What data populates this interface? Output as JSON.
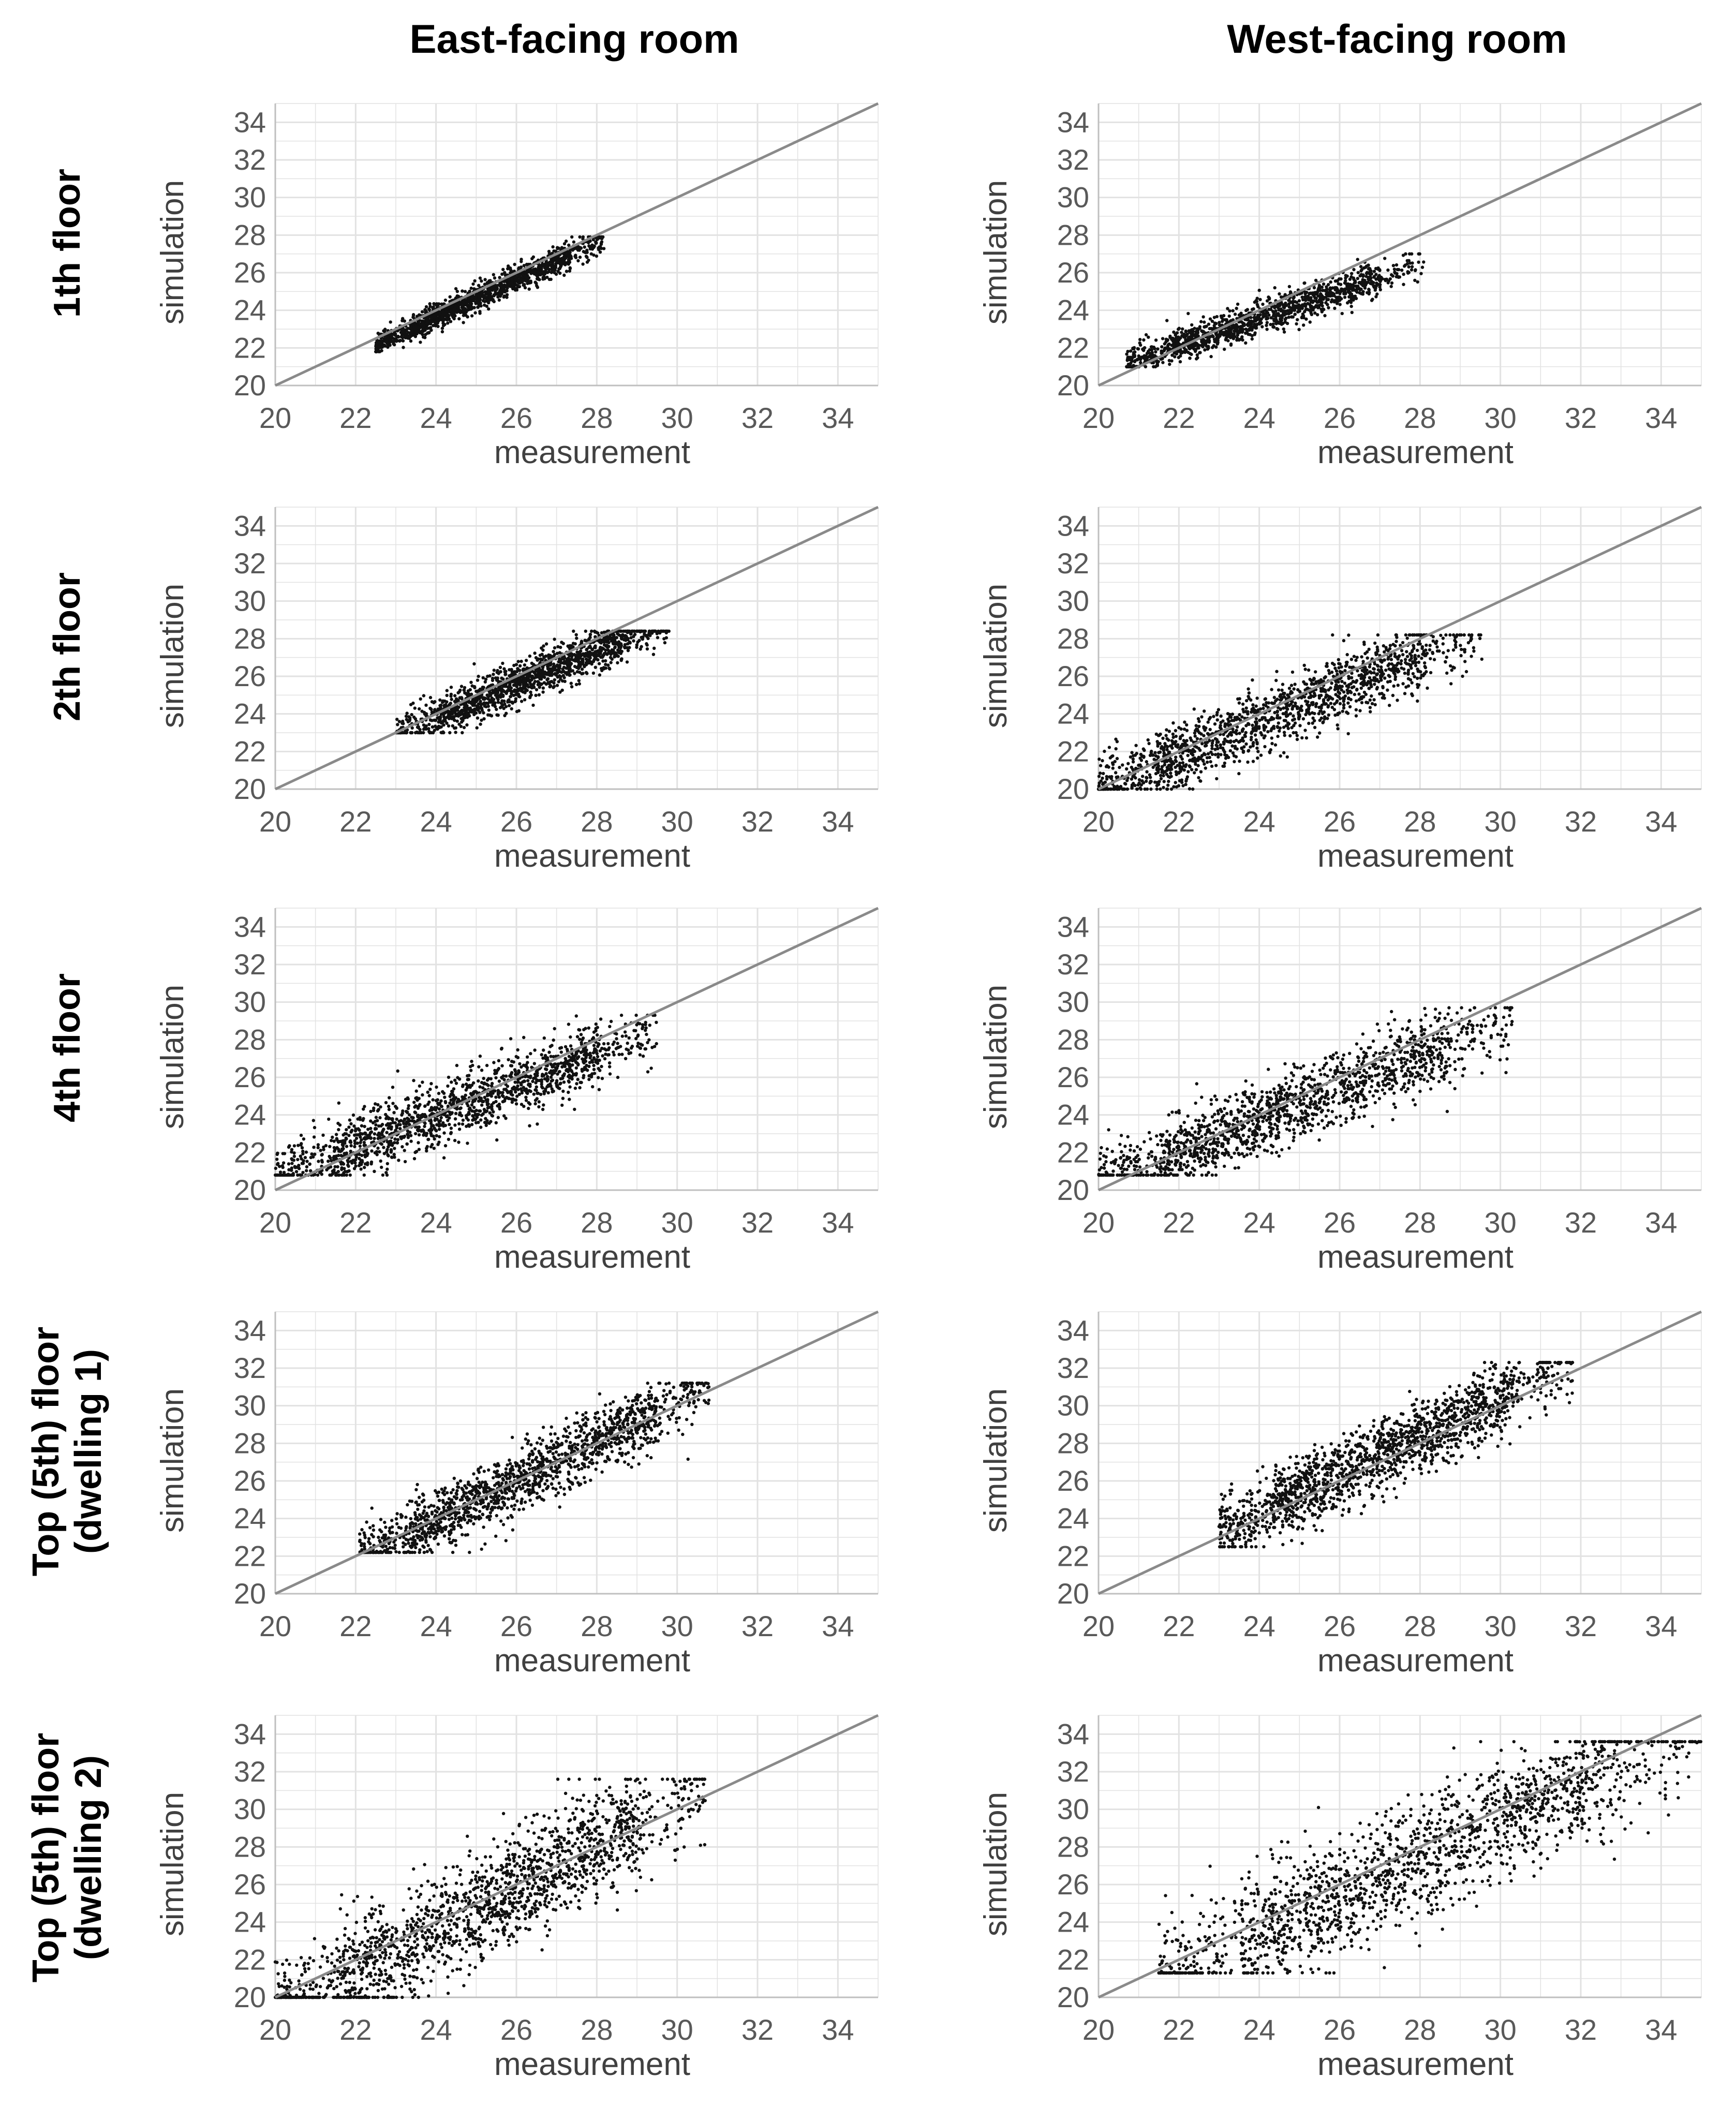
{
  "columns": [
    "East-facing room",
    "West-facing room"
  ],
  "rows": [
    {
      "label": [
        "1th floor"
      ]
    },
    {
      "label": [
        "2th floor"
      ]
    },
    {
      "label": [
        "4th floor"
      ]
    },
    {
      "label": [
        "Top (5th) floor",
        "(dwelling 1)"
      ]
    },
    {
      "label": [
        "Top (5th) floor",
        "(dwelling 2)"
      ]
    }
  ],
  "colors": {
    "points": "#111111",
    "reference_line": "#8a8a8a",
    "grid": "#e2e2e2",
    "tick_text": "#595959"
  },
  "chart_data": [
    {
      "type": "scatter",
      "row": 0,
      "col": 0,
      "title": "1th floor - East-facing room",
      "xlabel": "measurement",
      "ylabel": "simulation",
      "xlim": [
        20,
        35
      ],
      "ylim": [
        20,
        35
      ],
      "xticks": [
        20,
        22,
        24,
        26,
        28,
        30,
        32,
        34
      ],
      "yticks": [
        20,
        22,
        24,
        26,
        28,
        30,
        32,
        34
      ],
      "reference_line": "y = x",
      "cloud": {
        "n": 1400,
        "x_range": [
          22.5,
          28.2
        ],
        "slope": 1.0,
        "offset": -0.35,
        "spread": 0.35,
        "y_clip": [
          21.8,
          27.9
        ],
        "skew": 0.4
      }
    },
    {
      "type": "scatter",
      "row": 0,
      "col": 1,
      "title": "1th floor - West-facing room",
      "xlabel": "measurement",
      "ylabel": "simulation",
      "xlim": [
        20,
        35
      ],
      "ylim": [
        20,
        35
      ],
      "xticks": [
        20,
        22,
        24,
        26,
        28,
        30,
        32,
        34
      ],
      "yticks": [
        20,
        22,
        24,
        26,
        28,
        30,
        32,
        34
      ],
      "reference_line": "y = x",
      "cloud": {
        "n": 1300,
        "x_range": [
          20.7,
          28.1
        ],
        "slope": 0.72,
        "offset": 6.3,
        "spread": 0.45,
        "y_clip": [
          21.0,
          27.0
        ],
        "skew": 0.5
      }
    },
    {
      "type": "scatter",
      "row": 1,
      "col": 0,
      "title": "2th floor - East-facing room",
      "xlabel": "measurement",
      "ylabel": "simulation",
      "xlim": [
        20,
        35
      ],
      "ylim": [
        20,
        35
      ],
      "xticks": [
        20,
        22,
        24,
        26,
        28,
        30,
        32,
        34
      ],
      "yticks": [
        20,
        22,
        24,
        26,
        28,
        30,
        32,
        34
      ],
      "reference_line": "y = x",
      "cloud": {
        "n": 1500,
        "x_range": [
          23.0,
          29.8
        ],
        "slope": 0.9,
        "offset": 2.2,
        "spread": 0.55,
        "y_clip": [
          23.0,
          28.4
        ],
        "skew": 0.2
      }
    },
    {
      "type": "scatter",
      "row": 1,
      "col": 1,
      "title": "2th floor - West-facing room",
      "xlabel": "measurement",
      "ylabel": "simulation",
      "xlim": [
        20,
        35
      ],
      "ylim": [
        20,
        35
      ],
      "xticks": [
        20,
        22,
        24,
        26,
        28,
        30,
        32,
        34
      ],
      "yticks": [
        20,
        22,
        24,
        26,
        28,
        30,
        32,
        34
      ],
      "reference_line": "y = x",
      "cloud": {
        "n": 1500,
        "x_range": [
          20.0,
          29.6
        ],
        "slope": 0.88,
        "offset": 2.4,
        "spread": 0.9,
        "y_clip": [
          20.0,
          28.2
        ],
        "skew": 0.4
      }
    },
    {
      "type": "scatter",
      "row": 2,
      "col": 0,
      "title": "4th floor - East-facing room",
      "xlabel": "measurement",
      "ylabel": "simulation",
      "xlim": [
        20,
        35
      ],
      "ylim": [
        20,
        35
      ],
      "xticks": [
        20,
        22,
        24,
        26,
        28,
        30,
        32,
        34
      ],
      "yticks": [
        20,
        22,
        24,
        26,
        28,
        30,
        32,
        34
      ],
      "reference_line": "y = x",
      "cloud": {
        "n": 1500,
        "x_range": [
          20.0,
          29.5
        ],
        "slope": 0.82,
        "offset": 4.3,
        "spread": 0.85,
        "y_clip": [
          20.8,
          29.3
        ],
        "skew": 0.2
      }
    },
    {
      "type": "scatter",
      "row": 2,
      "col": 1,
      "title": "4th floor - West-facing room",
      "xlabel": "measurement",
      "ylabel": "simulation",
      "xlim": [
        20,
        35
      ],
      "ylim": [
        20,
        35
      ],
      "xticks": [
        20,
        22,
        24,
        26,
        28,
        30,
        32,
        34
      ],
      "yticks": [
        20,
        22,
        24,
        26,
        28,
        30,
        32,
        34
      ],
      "reference_line": "y = x",
      "cloud": {
        "n": 1500,
        "x_range": [
          20.0,
          30.3
        ],
        "slope": 0.85,
        "offset": 3.3,
        "spread": 1.0,
        "y_clip": [
          20.8,
          29.7
        ],
        "skew": 0.2
      }
    },
    {
      "type": "scatter",
      "row": 3,
      "col": 0,
      "title": "Top (5th) floor (dwelling 1) - East-facing room",
      "xlabel": "measurement",
      "ylabel": "simulation",
      "xlim": [
        20,
        35
      ],
      "ylim": [
        20,
        35
      ],
      "xticks": [
        20,
        22,
        24,
        26,
        28,
        30,
        32,
        34
      ],
      "yticks": [
        20,
        22,
        24,
        26,
        28,
        30,
        32,
        34
      ],
      "reference_line": "y = x",
      "cloud": {
        "n": 1500,
        "x_range": [
          22.1,
          30.8
        ],
        "slope": 1.05,
        "offset": -1.3,
        "spread": 0.85,
        "y_clip": [
          22.2,
          31.2
        ],
        "skew": 0.3
      }
    },
    {
      "type": "scatter",
      "row": 3,
      "col": 1,
      "title": "Top (5th) floor (dwelling 1) - West-facing room",
      "xlabel": "measurement",
      "ylabel": "simulation",
      "xlim": [
        20,
        35
      ],
      "ylim": [
        20,
        35
      ],
      "xticks": [
        20,
        22,
        24,
        26,
        28,
        30,
        32,
        34
      ],
      "yticks": [
        20,
        22,
        24,
        26,
        28,
        30,
        32,
        34
      ],
      "reference_line": "y = x",
      "cloud": {
        "n": 1600,
        "x_range": [
          23.0,
          31.8
        ],
        "slope": 1.05,
        "offset": -1.0,
        "spread": 0.95,
        "y_clip": [
          22.5,
          32.3
        ],
        "skew": 0.3
      }
    },
    {
      "type": "scatter",
      "row": 4,
      "col": 0,
      "title": "Top (5th) floor (dwelling 2) - East-facing room",
      "xlabel": "measurement",
      "ylabel": "simulation",
      "xlim": [
        20,
        35
      ],
      "ylim": [
        20,
        35
      ],
      "xticks": [
        20,
        22,
        24,
        26,
        28,
        30,
        32,
        34
      ],
      "yticks": [
        20,
        22,
        24,
        26,
        28,
        30,
        32,
        34
      ],
      "reference_line": "y = x",
      "cloud": {
        "n": 1700,
        "x_range": [
          20.0,
          30.7
        ],
        "slope": 1.1,
        "offset": -2.8,
        "spread": 1.4,
        "y_clip": [
          20.0,
          31.6
        ],
        "skew": 0.2
      }
    },
    {
      "type": "scatter",
      "row": 4,
      "col": 1,
      "title": "Top (5th) floor (dwelling 2) - West-facing room",
      "xlabel": "measurement",
      "ylabel": "simulation",
      "xlim": [
        20,
        35
      ],
      "ylim": [
        20,
        35
      ],
      "xticks": [
        20,
        22,
        24,
        26,
        28,
        30,
        32,
        34
      ],
      "yticks": [
        20,
        22,
        24,
        26,
        28,
        30,
        32,
        34
      ],
      "reference_line": "y = x",
      "cloud": {
        "n": 1700,
        "x_range": [
          21.5,
          35.0
        ],
        "slope": 1.0,
        "offset": -0.6,
        "spread": 1.6,
        "y_clip": [
          21.3,
          33.6
        ],
        "skew": 0.2
      }
    }
  ]
}
